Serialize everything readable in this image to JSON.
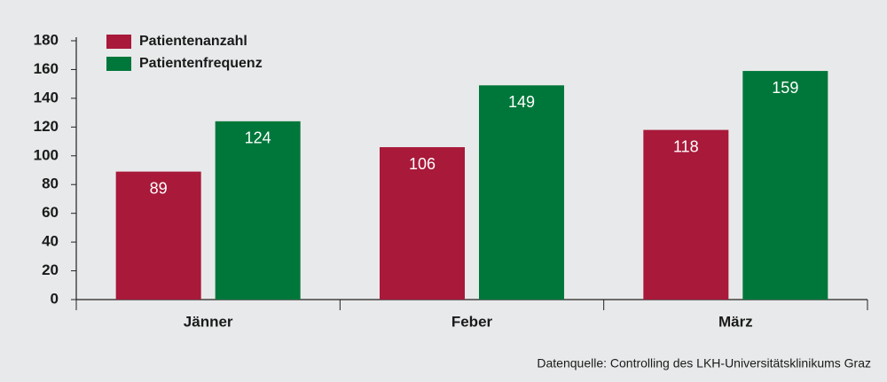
{
  "chart_data": {
    "type": "bar",
    "categories": [
      "Jänner",
      "Feber",
      "März"
    ],
    "series": [
      {
        "name": "Patientenanzahl",
        "color": "#a8193a",
        "values": [
          89,
          106,
          118
        ]
      },
      {
        "name": "Patientenfrequenz",
        "color": "#00773a",
        "values": [
          124,
          149,
          159
        ]
      }
    ],
    "ylim": [
      0,
      180
    ],
    "yticks": [
      0,
      20,
      40,
      60,
      80,
      100,
      120,
      140,
      160,
      180
    ],
    "legend": "top-left",
    "source": "Datenquelle: Controlling des LKH-Universitätsklinikums Graz"
  }
}
